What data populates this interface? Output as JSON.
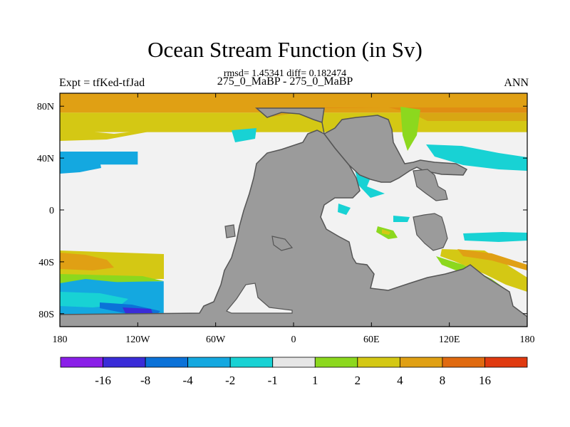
{
  "title": "Ocean Stream Function (in Sv)",
  "subtitle": "rmsd= 1.45341  diff= 0.182474",
  "left_label": "Expt = tfKed-tfJad",
  "center_label": "275_0_MaBP - 275_0_MaBP",
  "right_label": "ANN",
  "chart_data": {
    "type": "heatmap",
    "xlim": [
      -180,
      180
    ],
    "ylim": [
      -90,
      90
    ],
    "x_ticks": [
      {
        "value": -180,
        "label": "180"
      },
      {
        "value": -120,
        "label": "120W"
      },
      {
        "value": -60,
        "label": "60W"
      },
      {
        "value": 0,
        "label": "0"
      },
      {
        "value": 60,
        "label": "60E"
      },
      {
        "value": 120,
        "label": "120E"
      },
      {
        "value": 180,
        "label": "180"
      }
    ],
    "y_ticks": [
      {
        "value": 80,
        "label": "80N"
      },
      {
        "value": 40,
        "label": "40N"
      },
      {
        "value": 0,
        "label": "0"
      },
      {
        "value": -40,
        "label": "40S"
      },
      {
        "value": -80,
        "label": "80S"
      }
    ],
    "colorbar": {
      "colors": [
        "#8a1fe8",
        "#3a2cd8",
        "#0b72d8",
        "#14a8e0",
        "#18d2d4",
        "#e6e6e6",
        "#8cd81e",
        "#d4c814",
        "#e0a014",
        "#e06a10",
        "#e03a10"
      ],
      "labels": [
        "-16",
        "-8",
        "-4",
        "-2",
        "-1",
        "1",
        "2",
        "4",
        "8",
        "16"
      ]
    },
    "land_color": "#9b9b9b",
    "neutral_color": "#e6e6e6",
    "bands": [
      {
        "lon": [
          -180,
          180
        ],
        "lat": [
          75,
          90
        ],
        "color": "#e0a014"
      },
      {
        "lon": [
          -180,
          180
        ],
        "lat": [
          60,
          75
        ],
        "color": "#d4c814"
      },
      {
        "lon": [
          -180,
          -120
        ],
        "lat": [
          35,
          45
        ],
        "color": "#14a8e0"
      },
      {
        "lon": [
          -180,
          -115
        ],
        "lat": [
          -45,
          -35
        ],
        "color": "#e0a014"
      },
      {
        "lon": [
          -180,
          -100
        ],
        "lat": [
          -85,
          -55
        ],
        "color": "#14a8e0"
      }
    ]
  }
}
